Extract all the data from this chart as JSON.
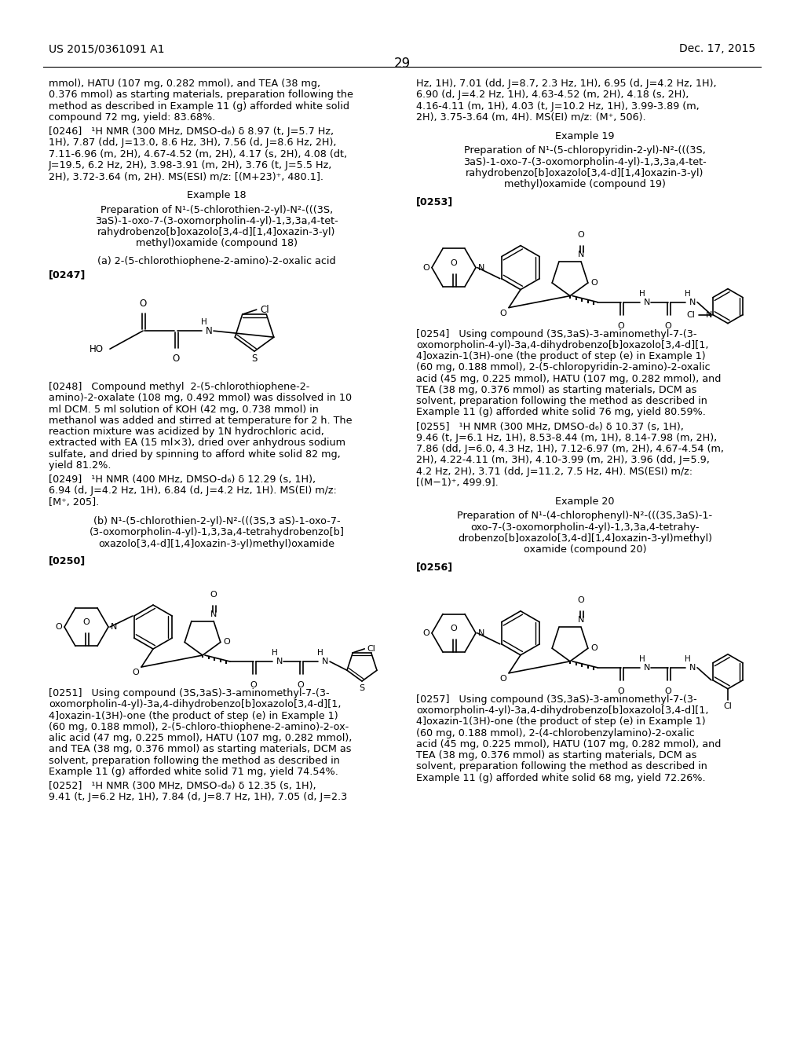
{
  "background_color": "#ffffff",
  "page_number": "29",
  "header_left": "US 2015/0361091 A1",
  "header_right": "Dec. 17, 2015",
  "font_size_body": 9.2,
  "font_size_header": 10.0,
  "font_size_page_num": 12,
  "top_text_left": "mmol), HATU (107 mg, 0.282 mmol), and TEA (38 mg,\n0.376 mmol) as starting materials, preparation following the\nmethod as described in Example 11 (g) afforded white solid\ncompound 72 mg, yield: 83.68%.",
  "para_0246": "[0246]   ¹H NMR (300 MHz, DMSO-d₆) δ 8.97 (t, J=5.7 Hz,\n1H), 7.87 (dd, J=13.0, 8.6 Hz, 3H), 7.56 (d, J=8.6 Hz, 2H),\n7.11-6.96 (m, 2H), 4.67-4.52 (m, 2H), 4.17 (s, 2H), 4.08 (dt,\nJ=19.5, 6.2 Hz, 2H), 3.98-3.91 (m, 2H), 3.76 (t, J=5.5 Hz,\n2H), 3.72-3.64 (m, 2H). MS(ESI) m/z: [(M+23)⁺, 480.1].",
  "example18_title": "Example 18",
  "example18_subtitle": "Preparation of N¹-(5-chlorothien-2-yl)-N²-(((3S,\n3aS)-1-oxo-7-(3-oxomorpholin-4-yl)-1,3,3a,4-tet-\nrahydrobenzo[b]oxazolo[3,4-d][1,4]oxazin-3-yl)\nmethyl)oxamide (compound 18)",
  "step_a": "(a) 2-(5-chlorothiophene-2-amino)-2-oxalic acid",
  "para_0247": "[0247]",
  "para_0248": "[0248]   Compound methyl  2-(5-chlorothiophene-2-\namino)-2-oxalate (108 mg, 0.492 mmol) was dissolved in 10\nml DCM. 5 ml solution of KOH (42 mg, 0.738 mmol) in\nmethanol was added and stirred at temperature for 2 h. The\nreaction mixture was acidized by 1N hydrochloric acid,\nextracted with EA (15 ml×3), dried over anhydrous sodium\nsulfate, and dried by spinning to afford white solid 82 mg,\nyield 81.2%.",
  "para_0249": "[0249]   ¹H NMR (400 MHz, DMSO-d₆) δ 12.29 (s, 1H),\n6.94 (d, J=4.2 Hz, 1H), 6.84 (d, J=4.2 Hz, 1H). MS(EI) m/z:\n[M⁺, 205].",
  "step_b": "(b) N¹-(5-chlorothien-2-yl)-N²-(((3S,3 aS)-1-oxo-7-\n(3-oxomorpholin-4-yl)-1,3,3a,4-tetrahydrobenzo[b]\noxazolo[3,4-d][1,4]oxazin-3-yl)methyl)oxamide",
  "para_0250": "[0250]",
  "para_0251": "[0251]   Using compound (3S,3aS)-3-aminomethyl-7-(3-\noxomorpholin-4-yl)-3a,4-dihydrobenzo[b]oxazolo[3,4-d][1,\n4]oxazin-1(3H)-one (the product of step (e) in Example 1)\n(60 mg, 0.188 mmol), 2-(5-chloro-thiophene-2-amino)-2-ox-\nalic acid (47 mg, 0.225 mmol), HATU (107 mg, 0.282 mmol),\nand TEA (38 mg, 0.376 mmol) as starting materials, DCM as\nsolvent, preparation following the method as described in\nExample 11 (g) afforded white solid 71 mg, yield 74.54%.",
  "para_0252": "[0252]   ¹H NMR (300 MHz, DMSO-d₆) δ 12.35 (s, 1H),\n9.41 (t, J=6.2 Hz, 1H), 7.84 (d, J=8.7 Hz, 1H), 7.05 (d, J=2.3",
  "top_text_right": "Hz, 1H), 7.01 (dd, J=8.7, 2.3 Hz, 1H), 6.95 (d, J=4.2 Hz, 1H),\n6.90 (d, J=4.2 Hz, 1H), 4.63-4.52 (m, 2H), 4.18 (s, 2H),\n4.16-4.11 (m, 1H), 4.03 (t, J=10.2 Hz, 1H), 3.99-3.89 (m,\n2H), 3.75-3.64 (m, 4H). MS(EI) m/z: (M⁺, 506).",
  "example19_title": "Example 19",
  "example19_subtitle": "Preparation of N¹-(5-chloropyridin-2-yl)-N²-(((3S,\n3aS)-1-oxo-7-(3-oxomorpholin-4-yl)-1,3,3a,4-tet-\nrahydrobenzo[b]oxazolo[3,4-d][1,4]oxazin-3-yl)\nmethyl)oxamide (compound 19)",
  "para_0253": "[0253]",
  "para_0254": "[0254]   Using compound (3S,3aS)-3-aminomethyl-7-(3-\noxomorpholin-4-yl)-3a,4-dihydrobenzo[b]oxazolo[3,4-d][1,\n4]oxazin-1(3H)-one (the product of step (e) in Example 1)\n(60 mg, 0.188 mmol), 2-(5-chloropyridin-2-amino)-2-oxalic\nacid (45 mg, 0.225 mmol), HATU (107 mg, 0.282 mmol), and\nTEA (38 mg, 0.376 mmol) as starting materials, DCM as\nsolvent, preparation following the method as described in\nExample 11 (g) afforded white solid 76 mg, yield 80.59%.",
  "para_0255": "[0255]   ¹H NMR (300 MHz, DMSO-d₆) δ 10.37 (s, 1H),\n9.46 (t, J=6.1 Hz, 1H), 8.53-8.44 (m, 1H), 8.14-7.98 (m, 2H),\n7.86 (dd, J=6.0, 4.3 Hz, 1H), 7.12-6.97 (m, 2H), 4.67-4.54 (m,\n2H), 4.22-4.11 (m, 3H), 4.10-3.99 (m, 2H), 3.96 (dd, J=5.9,\n4.2 Hz, 2H), 3.71 (dd, J=11.2, 7.5 Hz, 4H). MS(ESI) m/z:\n[(M−1)⁺, 499.9].",
  "example20_title": "Example 20",
  "example20_subtitle": "Preparation of N¹-(4-chlorophenyl)-N²-(((3S,3aS)-1-\noxo-7-(3-oxomorpholin-4-yl)-1,3,3a,4-tetrahy-\ndrobenzo[b]oxazolo[3,4-d][1,4]oxazin-3-yl)methyl)\noxamide (compound 20)",
  "para_0256": "[0256]",
  "para_0257": "[0257]   Using compound (3S,3aS)-3-aminomethyl-7-(3-\noxomorpholin-4-yl)-3a,4-dihydrobenzo[b]oxazolo[3,4-d][1,\n4]oxazin-1(3H)-one (the product of step (e) in Example 1)\n(60 mg, 0.188 mmol), 2-(4-chlorobenzylamino)-2-oxalic\nacid (45 mg, 0.225 mmol), HATU (107 mg, 0.282 mmol), and\nTEA (38 mg, 0.376 mmol) as starting materials, DCM as\nsolvent, preparation following the method as described in\nExample 11 (g) afforded white solid 68 mg, yield 72.26%."
}
